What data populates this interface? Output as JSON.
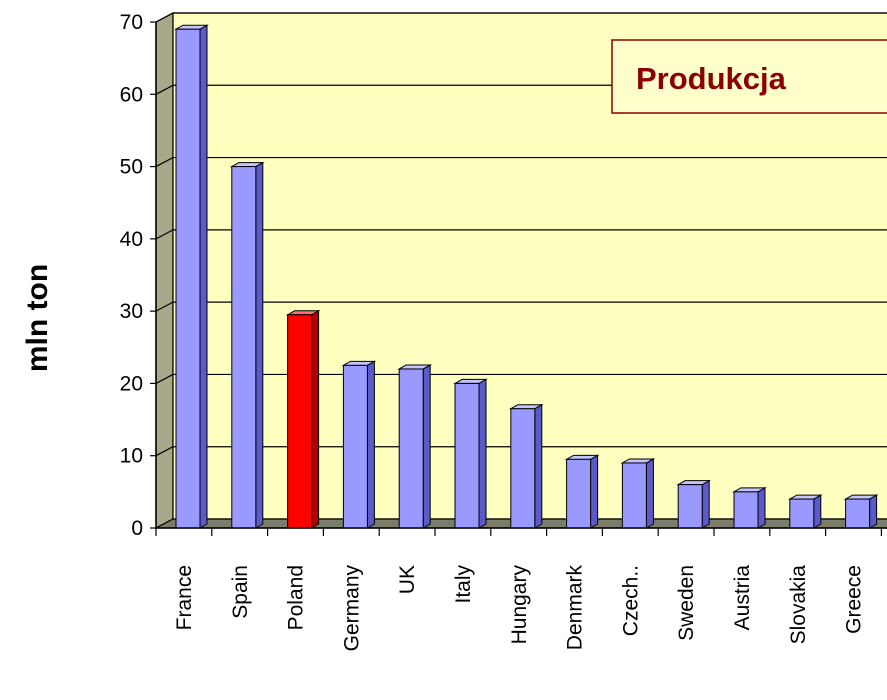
{
  "chart_data": {
    "type": "bar",
    "title": "Produkcja",
    "ylabel": "mln ton",
    "xlabel": "",
    "categories": [
      "France",
      "Spain",
      "Poland",
      "Germany",
      "UK",
      "Italy",
      "Hungary",
      "Denmark",
      "Czech..",
      "Sweden",
      "Austria",
      "Slovakia",
      "Greece"
    ],
    "values": [
      69,
      50,
      29.5,
      22.5,
      22,
      20,
      16.5,
      9.5,
      9,
      6,
      5,
      4,
      4
    ],
    "highlight_index": 2,
    "ylim": [
      0,
      70
    ],
    "yticks": [
      "0",
      "10",
      "20",
      "30",
      "40",
      "50",
      "60",
      "70"
    ],
    "grid": true,
    "legend": "none",
    "colors": {
      "bar_face": "#9999ff",
      "bar_side": "#5a5ac8",
      "bar_top": "#c4c4ff",
      "highlight_face": "#ff0000",
      "highlight_side": "#b00000",
      "highlight_top": "#ff7070",
      "plot_background": "#ffffc0",
      "wall": "#a8a88a",
      "floor": "#7c7c6a",
      "title_box": "#ffffcc",
      "title_border": "#8b0000",
      "title_text": "#8b0000"
    }
  }
}
